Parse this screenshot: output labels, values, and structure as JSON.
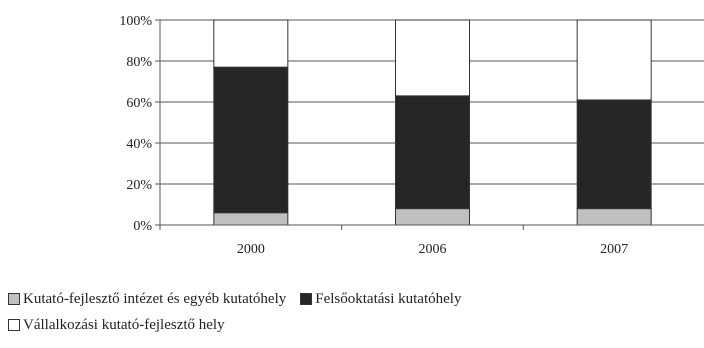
{
  "chart_data": {
    "type": "bar",
    "stacked": true,
    "normalized": true,
    "categories": [
      "2000",
      "2006",
      "2007"
    ],
    "series": [
      {
        "name": "Kutató-fejlesztő intézet és egyéb kutatóhely",
        "color": "#c0c0c0",
        "values": [
          6,
          8,
          8
        ]
      },
      {
        "name": "Felsőoktatási kutatóhely",
        "color": "#262626",
        "values": [
          71,
          55,
          53
        ]
      },
      {
        "name": "Vállalkozási kutató-fejlesztő hely",
        "color": "#ffffff",
        "values": [
          23,
          37,
          39
        ]
      }
    ],
    "yticks": [
      "0%",
      "20%",
      "40%",
      "60%",
      "80%",
      "100%"
    ],
    "ylim": [
      0,
      100
    ],
    "grid": true,
    "legend_position": "bottom"
  }
}
